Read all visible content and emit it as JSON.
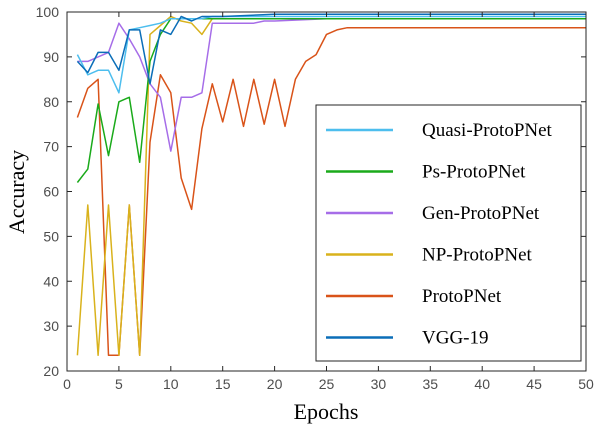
{
  "chart_data": {
    "type": "line",
    "xlabel": "Epochs",
    "ylabel": "Accuracy",
    "xlim": [
      0,
      50
    ],
    "ylim": [
      20,
      100
    ],
    "xticks": [
      0,
      5,
      10,
      15,
      20,
      25,
      30,
      35,
      40,
      45,
      50
    ],
    "yticks": [
      20,
      30,
      40,
      50,
      60,
      70,
      80,
      90,
      100
    ],
    "grid": false,
    "legend_position": "right",
    "series": [
      {
        "name": "ProtoPNet",
        "color": "#d95319",
        "x": [
          1,
          2,
          3,
          4,
          5,
          6,
          7,
          8,
          9,
          10,
          11,
          12,
          13,
          14,
          15,
          16,
          17,
          18,
          19,
          20,
          21,
          22,
          23,
          24,
          25,
          26,
          27,
          50
        ],
        "y": [
          76.5,
          83,
          85,
          23.5,
          23.5,
          57,
          23.5,
          71,
          86,
          82,
          63,
          56,
          74,
          84,
          75.5,
          85,
          74.5,
          85,
          75,
          85,
          74.5,
          85,
          89,
          90.5,
          95,
          96,
          96.5,
          96.5
        ]
      },
      {
        "name": "NP-ProtoPNet",
        "color": "#d9b21c",
        "x": [
          1,
          2,
          3,
          4,
          5,
          6,
          7,
          8,
          9,
          10,
          11,
          12,
          13,
          14,
          15,
          20,
          25,
          50
        ],
        "y": [
          23.5,
          57,
          23.5,
          57,
          23.5,
          57,
          23.5,
          95,
          97,
          99,
          98,
          97.5,
          95,
          98.5,
          98.5,
          98.5,
          98.5,
          98.5
        ]
      },
      {
        "name": "Gen-ProtoPNet",
        "color": "#a66de8",
        "x": [
          1,
          2,
          3,
          4,
          5,
          6,
          7,
          8,
          9,
          10,
          11,
          12,
          13,
          14,
          15,
          16,
          17,
          18,
          19,
          20,
          25,
          30,
          50
        ],
        "y": [
          89,
          89,
          90,
          91,
          97.5,
          94,
          90,
          84,
          81,
          69,
          81,
          81,
          82,
          97.5,
          97.5,
          97.5,
          97.5,
          97.5,
          98,
          98,
          98.5,
          98.5,
          98.5
        ]
      },
      {
        "name": "Ps-ProtoPNet",
        "color": "#1aaa1a",
        "x": [
          1,
          2,
          3,
          4,
          5,
          6,
          7,
          8,
          9,
          10,
          11,
          12,
          13,
          14,
          15,
          20,
          25,
          50
        ],
        "y": [
          62,
          65,
          79.5,
          68,
          80,
          81,
          66.5,
          89,
          95,
          98.5,
          98.5,
          98.5,
          98.5,
          98.5,
          98.5,
          98.5,
          98.5,
          98.5
        ]
      },
      {
        "name": "Quasi-ProtoPNet",
        "color": "#4dbeee",
        "x": [
          1,
          2,
          3,
          4,
          5,
          6,
          7,
          8,
          9,
          10,
          11,
          12,
          13,
          14,
          15,
          20,
          25,
          50
        ],
        "y": [
          90.5,
          86,
          87,
          87,
          82,
          96,
          96.5,
          97,
          97.5,
          98.5,
          98.5,
          98.5,
          98.5,
          99,
          99,
          99,
          99,
          99
        ]
      },
      {
        "name": "VGG-19",
        "color": "#0b6eb8",
        "x": [
          1,
          2,
          3,
          4,
          5,
          6,
          7,
          8,
          9,
          10,
          11,
          12,
          13,
          14,
          15,
          20,
          25,
          50
        ],
        "y": [
          89,
          86.5,
          91,
          91,
          87,
          96,
          96,
          84,
          96,
          95,
          99,
          98,
          99,
          99,
          99,
          99.5,
          99.5,
          99.5
        ]
      }
    ],
    "legend": [
      {
        "label": "Quasi-ProtoPNet",
        "color": "#4dbeee"
      },
      {
        "label": "Ps-ProtoPNet",
        "color": "#1aaa1a"
      },
      {
        "label": "Gen-ProtoPNet",
        "color": "#a66de8"
      },
      {
        "label": "NP-ProtoPNet",
        "color": "#d9b21c"
      },
      {
        "label": "ProtoPNet",
        "color": "#d95319"
      },
      {
        "label": "VGG-19",
        "color": "#0b6eb8"
      }
    ]
  }
}
